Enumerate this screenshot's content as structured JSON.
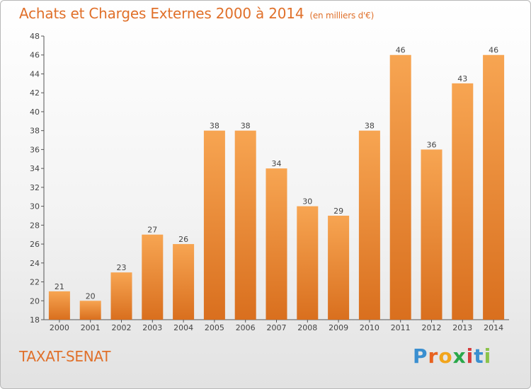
{
  "title": "Achats et Charges Externes 2000 à 2014",
  "unit": "(en milliers d'€)",
  "town": "TAXAT-SENAT",
  "logo": {
    "letters": [
      "P",
      "r",
      "o",
      "x",
      "i",
      "t",
      "i"
    ],
    "colors": [
      "#3a8fd0",
      "#e8621f",
      "#f2a51c",
      "#2aa84a",
      "#d63c3c",
      "#3a8fd0",
      "#8bc34a"
    ]
  },
  "colors": {
    "bar_light": "#f7a552",
    "bar_dark": "#d96f1e",
    "title": "#e0702a"
  },
  "chart_data": {
    "type": "bar",
    "title": "Achats et Charges Externes 2000 à 2014",
    "categories": [
      "2000",
      "2001",
      "2002",
      "2003",
      "2004",
      "2005",
      "2006",
      "2007",
      "2008",
      "2009",
      "2010",
      "2011",
      "2012",
      "2013",
      "2014"
    ],
    "values": [
      21,
      20,
      23,
      27,
      26,
      38,
      38,
      34,
      30,
      29,
      38,
      46,
      36,
      43,
      46
    ],
    "ylim": [
      18,
      48
    ],
    "yticks": [
      18,
      20,
      22,
      24,
      26,
      28,
      30,
      32,
      34,
      36,
      38,
      40,
      42,
      44,
      46,
      48
    ],
    "grid": false
  }
}
